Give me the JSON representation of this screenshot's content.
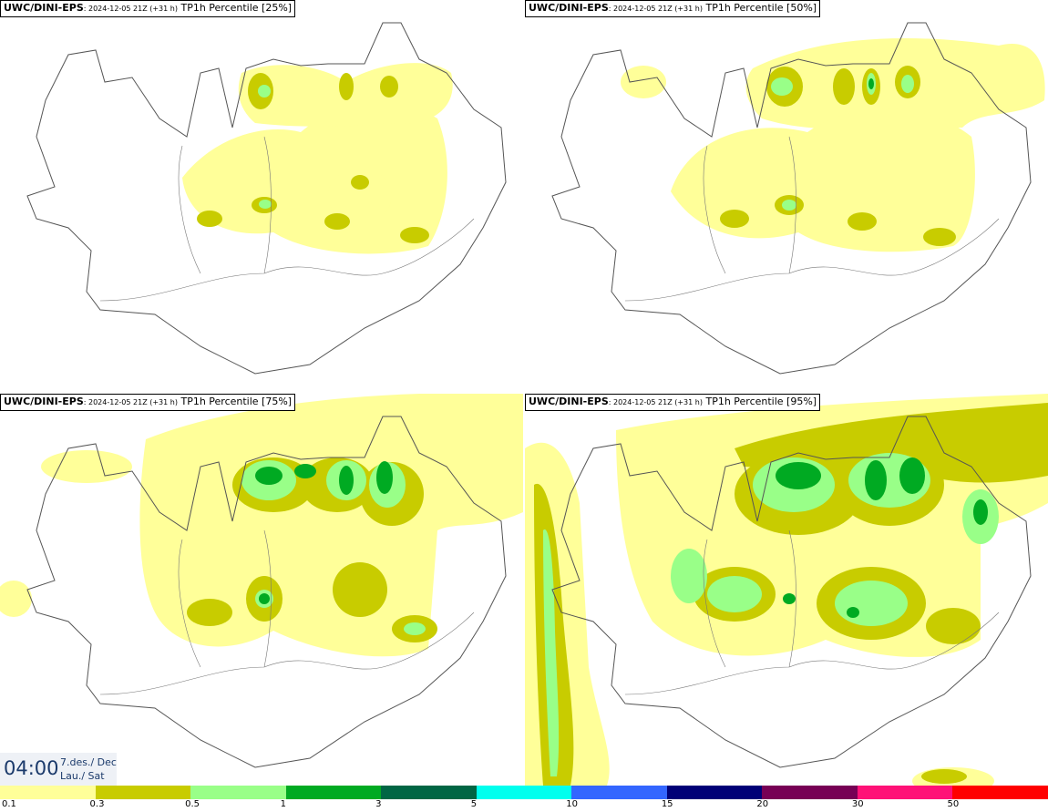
{
  "panels": [
    {
      "model": "UWC/DINI-EPS",
      "init": ": 2024-12-05 21Z (+31 h)",
      "field": "TP1h Percentile [25%]"
    },
    {
      "model": "UWC/DINI-EPS",
      "init": ": 2024-12-05 21Z (+31 h)",
      "field": "TP1h Percentile [50%]"
    },
    {
      "model": "UWC/DINI-EPS",
      "init": ": 2024-12-05 21Z (+31 h)",
      "field": "TP1h Percentile [75%]"
    },
    {
      "model": "UWC/DINI-EPS",
      "init": ": 2024-12-05 21Z (+31 h)",
      "field": "TP1h Percentile [95%]"
    }
  ],
  "valid_time": {
    "hour": "04:00",
    "date": "7.des./ Dec",
    "weekday": "Lau./ Sat"
  },
  "legend": {
    "colors": [
      "#ffff99",
      "#c8cc00",
      "#99ff88",
      "#00aa22",
      "#006644",
      "#00ffee",
      "#3366ff",
      "#000077",
      "#770055",
      "#ff1177",
      "#ff0000"
    ],
    "labels": [
      "0.1",
      "0.3",
      "0.5",
      "1",
      "3",
      "5",
      "10",
      "15",
      "20",
      "30",
      "50"
    ]
  }
}
